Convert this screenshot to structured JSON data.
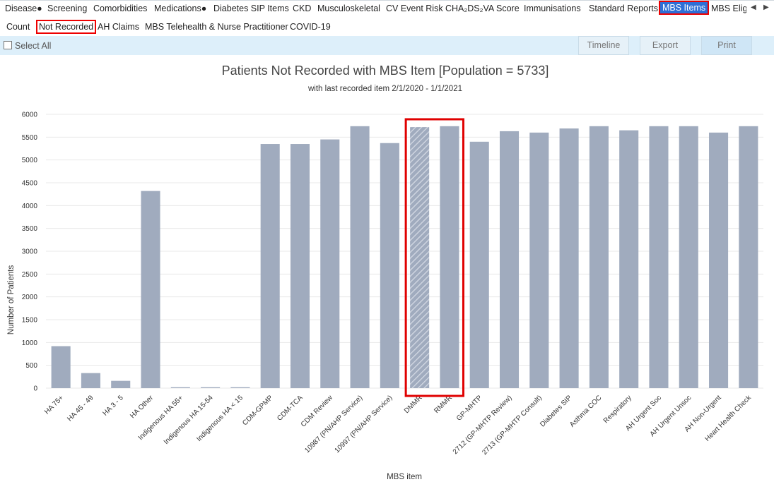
{
  "tabs": [
    {
      "label": "Disease●"
    },
    {
      "label": "Screening"
    },
    {
      "label": "Comorbidities"
    },
    {
      "label": "Medications●"
    },
    {
      "label": "Diabetes SIP Items"
    },
    {
      "label": "CKD"
    },
    {
      "label": "Musculoskeletal"
    },
    {
      "label": "CV Event Risk"
    },
    {
      "label": "CHA₂DS₂VA Score"
    },
    {
      "label": "Immunisations"
    },
    {
      "label": "Standard Reports"
    },
    {
      "label": "MBS Items"
    },
    {
      "label": "MBS Eligi"
    }
  ],
  "nav": {
    "left": "◀",
    "right": "▶"
  },
  "subtabs": [
    {
      "label": "Count"
    },
    {
      "label": "Not Recorded"
    },
    {
      "label": "AH Claims"
    },
    {
      "label": "MBS Telehealth & Nurse Practitioner"
    },
    {
      "label": "COVID-19"
    }
  ],
  "toolbar": {
    "select_all": "Select All",
    "timeline": "Timeline",
    "export": "Export",
    "print": "Print"
  },
  "chart_data": {
    "type": "bar",
    "title": "Patients Not Recorded with MBS Item [Population = 5733]",
    "subtitle": "with last recorded item 2/1/2020 - 1/1/2021",
    "xlabel": "MBS item",
    "ylabel": "Number of Patients",
    "ylim": [
      0,
      6000
    ],
    "yticks": [
      0,
      500,
      1000,
      1500,
      2000,
      2500,
      3000,
      3500,
      4000,
      4500,
      5000,
      5500,
      6000
    ],
    "bar_color": "#a0abbe",
    "grid": true,
    "highlighted": [
      "DMMR",
      "RMMR"
    ],
    "hatched": [
      "DMMR"
    ],
    "categories": [
      "HA 75+",
      "HA 45 - 49",
      "HA 3 - 5",
      "HA Other",
      "Indigenous HA 55+",
      "Indigenous HA 15-54",
      "Indigenous HA < 15",
      "CDM-GPMP",
      "CDM-TCA",
      "CDM Review",
      "10987 (PN/AHP Service)",
      "10997 (PN/AHP Service)",
      "DMMR",
      "RMMR",
      "GP-MHTP",
      "2712 (GP-MHTP Review)",
      "2713 (GP-MHTP Consult)",
      "Diabetes SIP",
      "Asthma COC",
      "Respiratory",
      "AH Urgent Soc",
      "AH Urgent Unsoc",
      "AH Non-Urgent",
      "Heart Health Check"
    ],
    "values": [
      920,
      330,
      160,
      4320,
      20,
      20,
      20,
      5350,
      5350,
      5450,
      5740,
      5370,
      5720,
      5740,
      5400,
      5630,
      5600,
      5690,
      5740,
      5650,
      5740,
      5740,
      5600,
      5740
    ]
  }
}
